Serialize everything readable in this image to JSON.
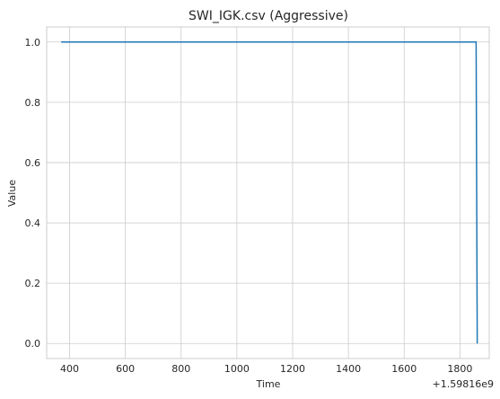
{
  "chart_data": {
    "type": "line",
    "title": "SWI_IGK.csv (Aggressive)",
    "xlabel": "Time",
    "ylabel": "Value",
    "x_offset_label": "+1.59816e9",
    "xlim": [
      318,
      1905
    ],
    "ylim": [
      -0.05,
      1.05
    ],
    "xticks": [
      400,
      600,
      800,
      1000,
      1200,
      1400,
      1600,
      1800
    ],
    "yticks": [
      0.0,
      0.2,
      0.4,
      0.6,
      0.8,
      1.0
    ],
    "xtick_labels": [
      "400",
      "600",
      "800",
      "1000",
      "1200",
      "1400",
      "1600",
      "1800"
    ],
    "ytick_labels": [
      "0.0",
      "0.2",
      "0.4",
      "0.6",
      "0.8",
      "1.0"
    ],
    "grid": true,
    "series": [
      {
        "color": "#1f77b4",
        "x": [
          370,
          1858,
          1860,
          1862
        ],
        "y": [
          1.0,
          1.0,
          0.5,
          0.0
        ]
      }
    ]
  }
}
